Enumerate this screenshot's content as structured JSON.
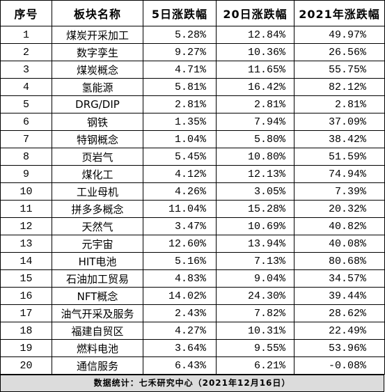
{
  "table": {
    "headers": {
      "seq": "序号",
      "sector": "板块名称",
      "change_5d": "5日涨跌幅",
      "change_20d": "20日涨跌幅",
      "change_2021": "2021年涨跌幅"
    },
    "rows": [
      {
        "seq": "1",
        "sector": "煤炭开采加工",
        "change_5d": "5.28%",
        "change_20d": "12.84%",
        "change_2021": "49.97%"
      },
      {
        "seq": "2",
        "sector": "数字孪生",
        "change_5d": "9.27%",
        "change_20d": "10.36%",
        "change_2021": "26.56%"
      },
      {
        "seq": "3",
        "sector": "煤炭概念",
        "change_5d": "4.71%",
        "change_20d": "11.65%",
        "change_2021": "55.75%"
      },
      {
        "seq": "4",
        "sector": "氢能源",
        "change_5d": "5.81%",
        "change_20d": "16.42%",
        "change_2021": "82.12%"
      },
      {
        "seq": "5",
        "sector": "DRG/DIP",
        "change_5d": "2.81%",
        "change_20d": "2.81%",
        "change_2021": "2.81%"
      },
      {
        "seq": "6",
        "sector": "钢铁",
        "change_5d": "1.35%",
        "change_20d": "7.94%",
        "change_2021": "37.09%"
      },
      {
        "seq": "7",
        "sector": "特钢概念",
        "change_5d": "1.04%",
        "change_20d": "5.80%",
        "change_2021": "38.42%"
      },
      {
        "seq": "8",
        "sector": "页岩气",
        "change_5d": "5.45%",
        "change_20d": "10.80%",
        "change_2021": "51.59%"
      },
      {
        "seq": "9",
        "sector": "煤化工",
        "change_5d": "4.12%",
        "change_20d": "12.13%",
        "change_2021": "74.94%"
      },
      {
        "seq": "10",
        "sector": "工业母机",
        "change_5d": "4.26%",
        "change_20d": "3.05%",
        "change_2021": "7.39%"
      },
      {
        "seq": "11",
        "sector": "拼多多概念",
        "change_5d": "11.04%",
        "change_20d": "15.28%",
        "change_2021": "20.32%"
      },
      {
        "seq": "12",
        "sector": "天然气",
        "change_5d": "3.47%",
        "change_20d": "10.69%",
        "change_2021": "40.82%"
      },
      {
        "seq": "13",
        "sector": "元宇宙",
        "change_5d": "12.60%",
        "change_20d": "13.94%",
        "change_2021": "40.08%"
      },
      {
        "seq": "14",
        "sector": "HIT电池",
        "change_5d": "5.16%",
        "change_20d": "7.13%",
        "change_2021": "80.68%"
      },
      {
        "seq": "15",
        "sector": "石油加工贸易",
        "change_5d": "4.83%",
        "change_20d": "9.04%",
        "change_2021": "34.57%"
      },
      {
        "seq": "16",
        "sector": "NFT概念",
        "change_5d": "14.02%",
        "change_20d": "24.30%",
        "change_2021": "39.44%"
      },
      {
        "seq": "17",
        "sector": "油气开采及服务",
        "change_5d": "2.43%",
        "change_20d": "7.82%",
        "change_2021": "28.62%"
      },
      {
        "seq": "18",
        "sector": "福建自贸区",
        "change_5d": "4.27%",
        "change_20d": "10.31%",
        "change_2021": "22.49%"
      },
      {
        "seq": "19",
        "sector": "燃料电池",
        "change_5d": "3.64%",
        "change_20d": "9.55%",
        "change_2021": "53.96%"
      },
      {
        "seq": "20",
        "sector": "通信服务",
        "change_5d": "6.43%",
        "change_20d": "6.21%",
        "change_2021": "-0.08%"
      }
    ]
  },
  "footer": {
    "text": "数据统计：七禾研究中心（2021年12月16日）"
  },
  "colors": {
    "border": "#000000",
    "footer_background": "#dcdcdc",
    "text": "#000000"
  }
}
